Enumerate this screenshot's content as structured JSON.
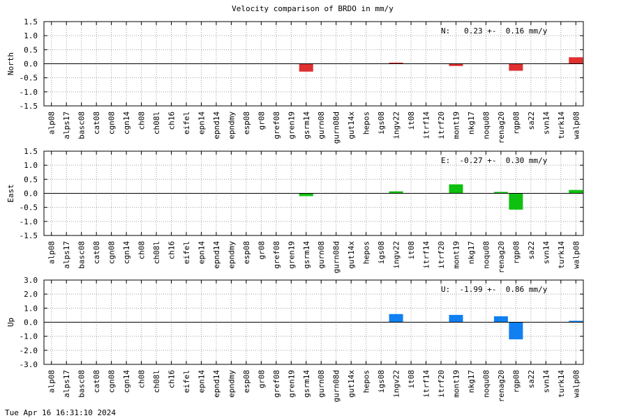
{
  "chart_title": "Velocity comparison of BRDO in mm/y",
  "timestamp": "Tue Apr 16 16:31:10 2024",
  "chart_data": [
    {
      "type": "bar",
      "ylabel": "North",
      "ylim": [
        -1.5,
        1.5
      ],
      "yticks": [
        "1.5",
        "1.0",
        "0.5",
        "0.0",
        "-0.5",
        "-1.0",
        "-1.5"
      ],
      "ytick_values": [
        1.5,
        1.0,
        0.5,
        0.0,
        -0.5,
        -1.0,
        -1.5
      ],
      "color": "#e03030",
      "annotation": "N:   0.23 +-  0.16 mm/y",
      "categories": [
        "alp08",
        "alps17",
        "basc08",
        "cat08",
        "cgn08",
        "cgn14",
        "ch08",
        "ch08l",
        "ch16",
        "eifel",
        "epn14",
        "epnd14",
        "epndmy",
        "esp08",
        "gr08",
        "gref08",
        "gren19",
        "gsrm14",
        "gurn08",
        "gurn08d",
        "gut14x",
        "hepos",
        "igs08",
        "ingv22",
        "it08",
        "itrf14",
        "itrf20",
        "mont19",
        "nkg17",
        "noqu08",
        "renag20",
        "rgp08",
        "sa22",
        "svn14",
        "turk14",
        "walp08"
      ],
      "values": [
        null,
        null,
        null,
        null,
        null,
        null,
        null,
        null,
        null,
        null,
        null,
        null,
        null,
        null,
        null,
        null,
        null,
        -0.28,
        null,
        null,
        null,
        null,
        null,
        0.04,
        null,
        null,
        null,
        -0.08,
        null,
        null,
        null,
        -0.25,
        null,
        null,
        null,
        0.23
      ],
      "grid": true
    },
    {
      "type": "bar",
      "ylabel": "East",
      "ylim": [
        -1.5,
        1.5
      ],
      "yticks": [
        "1.5",
        "1.0",
        "0.5",
        "0.0",
        "-0.5",
        "-1.0",
        "-1.5"
      ],
      "ytick_values": [
        1.5,
        1.0,
        0.5,
        0.0,
        -0.5,
        -1.0,
        -1.5
      ],
      "color": "#10c010",
      "annotation": "E:  -0.27 +-  0.30 mm/y",
      "categories": [
        "alp08",
        "alps17",
        "basc08",
        "cat08",
        "cgn08",
        "cgn14",
        "ch08",
        "ch08l",
        "ch16",
        "eifel",
        "epn14",
        "epnd14",
        "epndmy",
        "esp08",
        "gr08",
        "gref08",
        "gren19",
        "gsrm14",
        "gurn08",
        "gurn08d",
        "gut14x",
        "hepos",
        "igs08",
        "ingv22",
        "it08",
        "itrf14",
        "itrf20",
        "mont19",
        "nkg17",
        "noqu08",
        "renag20",
        "rgp08",
        "sa22",
        "svn14",
        "turk14",
        "walp08"
      ],
      "values": [
        null,
        null,
        null,
        null,
        null,
        null,
        null,
        null,
        null,
        null,
        null,
        null,
        null,
        null,
        null,
        null,
        null,
        -0.1,
        null,
        null,
        null,
        null,
        null,
        0.07,
        null,
        null,
        null,
        0.32,
        null,
        null,
        0.05,
        -0.58,
        null,
        null,
        null,
        0.12
      ],
      "grid": true
    },
    {
      "type": "bar",
      "ylabel": "Up",
      "ylim": [
        -3.0,
        3.0
      ],
      "yticks": [
        "3.0",
        "2.0",
        "1.0",
        "0.0",
        "-1.0",
        "-2.0",
        "-3.0"
      ],
      "ytick_values": [
        3.0,
        2.0,
        1.0,
        0.0,
        -1.0,
        -2.0,
        -3.0
      ],
      "color": "#1080f0",
      "annotation": "U:  -1.99 +-  0.86 mm/y",
      "categories": [
        "alp08",
        "alps17",
        "basc08",
        "cat08",
        "cgn08",
        "cgn14",
        "ch08",
        "ch08l",
        "ch16",
        "eifel",
        "epn14",
        "epnd14",
        "epndmy",
        "esp08",
        "gr08",
        "gref08",
        "gren19",
        "gsrm14",
        "gurn08",
        "gurn08d",
        "gut14x",
        "hepos",
        "igs08",
        "ingv22",
        "it08",
        "itrf14",
        "itrf20",
        "mont19",
        "nkg17",
        "noqu08",
        "renag20",
        "rgp08",
        "sa22",
        "svn14",
        "turk14",
        "walp08"
      ],
      "values": [
        null,
        null,
        null,
        null,
        null,
        null,
        null,
        null,
        null,
        null,
        null,
        null,
        null,
        null,
        null,
        null,
        null,
        null,
        null,
        null,
        null,
        null,
        null,
        0.58,
        null,
        null,
        null,
        0.52,
        null,
        null,
        0.42,
        -1.22,
        null,
        null,
        null,
        0.1
      ],
      "grid": true
    }
  ]
}
